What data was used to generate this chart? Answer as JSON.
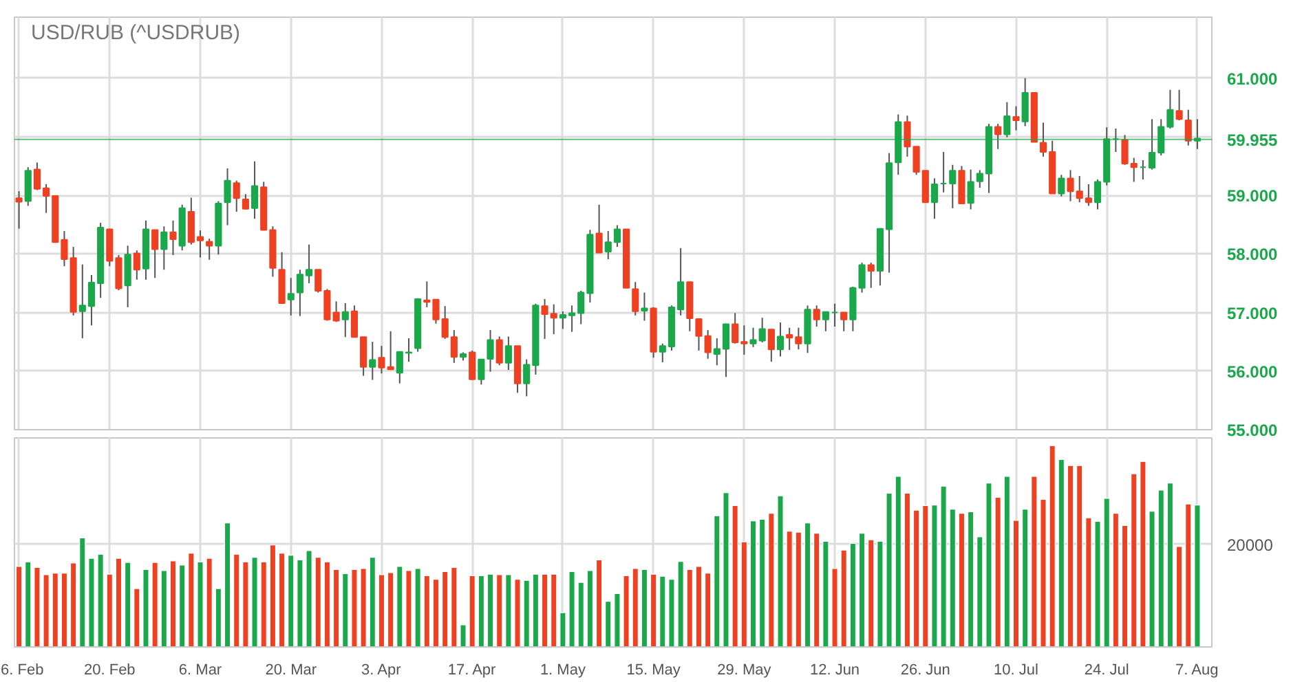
{
  "chart_data": [
    {
      "type": "candlestick",
      "title": "USD/RUB (^USDRUB)",
      "categories": [
        null,
        null,
        null,
        null,
        null,
        null,
        null,
        null,
        null,
        null,
        null,
        null,
        null,
        null,
        null,
        null,
        null,
        null,
        null,
        null,
        null,
        null,
        null,
        null,
        null,
        null,
        null,
        null,
        null,
        null,
        null,
        null,
        null,
        null,
        null,
        null,
        null,
        null,
        null,
        null,
        null,
        null,
        null,
        null,
        null,
        null,
        null,
        null,
        null,
        null,
        null,
        null,
        null,
        null,
        null,
        null,
        null,
        null,
        null,
        null,
        null,
        null,
        null,
        null,
        null,
        null,
        null,
        null,
        null,
        null,
        null,
        null,
        null,
        null,
        null,
        null,
        null,
        null,
        null,
        null,
        null,
        null,
        null,
        null,
        null,
        null,
        null,
        null,
        null,
        null,
        null,
        null,
        null,
        null,
        null,
        null,
        null,
        null,
        null,
        null,
        null,
        null,
        null,
        null,
        null,
        null,
        null,
        null,
        null,
        null,
        null,
        null,
        null,
        null,
        null,
        null,
        null,
        null,
        null,
        null,
        null,
        null,
        null,
        null,
        null,
        null,
        null,
        null,
        null,
        null,
        null
      ],
      "ohlc": [
        [
          58.95,
          59.07,
          58.43,
          58.89
        ],
        [
          58.9,
          59.48,
          58.82,
          59.42
        ],
        [
          59.44,
          59.56,
          59.09,
          59.11
        ],
        [
          59.12,
          59.19,
          58.7,
          58.99
        ],
        [
          58.99,
          59.0,
          58.19,
          58.2
        ],
        [
          58.24,
          58.39,
          57.79,
          57.91
        ],
        [
          57.93,
          58.12,
          56.95,
          57.01
        ],
        [
          57.02,
          57.82,
          56.56,
          57.12
        ],
        [
          57.11,
          57.64,
          56.78,
          57.51
        ],
        [
          57.5,
          58.53,
          57.25,
          58.45
        ],
        [
          58.42,
          58.43,
          57.79,
          57.88
        ],
        [
          57.93,
          57.98,
          57.38,
          57.41
        ],
        [
          57.46,
          58.14,
          57.09,
          57.99
        ],
        [
          58.01,
          58.06,
          57.56,
          57.73
        ],
        [
          57.75,
          58.57,
          57.56,
          58.42
        ],
        [
          58.41,
          58.41,
          57.59,
          58.08
        ],
        [
          58.08,
          58.47,
          57.73,
          58.37
        ],
        [
          58.37,
          58.57,
          57.98,
          58.25
        ],
        [
          58.14,
          58.84,
          58.06,
          58.78
        ],
        [
          58.72,
          58.96,
          58.16,
          58.2
        ],
        [
          58.29,
          58.4,
          57.94,
          58.23
        ],
        [
          58.21,
          58.26,
          57.9,
          58.14
        ],
        [
          58.14,
          58.9,
          57.99,
          58.86
        ],
        [
          58.88,
          59.46,
          58.49,
          59.25
        ],
        [
          59.21,
          59.25,
          58.72,
          58.95
        ],
        [
          58.93,
          59.02,
          58.76,
          58.77
        ],
        [
          58.78,
          59.58,
          58.6,
          59.16
        ],
        [
          59.14,
          59.23,
          58.41,
          58.41
        ],
        [
          58.41,
          58.47,
          57.61,
          57.76
        ],
        [
          57.73,
          58.03,
          57.15,
          57.16
        ],
        [
          57.22,
          57.59,
          56.95,
          57.32
        ],
        [
          57.34,
          57.73,
          56.94,
          57.65
        ],
        [
          57.63,
          58.16,
          57.5,
          57.73
        ],
        [
          57.73,
          57.73,
          57.34,
          57.37
        ],
        [
          57.37,
          57.4,
          56.86,
          56.88
        ],
        [
          57.0,
          57.19,
          56.84,
          56.86
        ],
        [
          56.88,
          57.16,
          56.58,
          57.01
        ],
        [
          57.02,
          57.12,
          56.58,
          56.58
        ],
        [
          56.58,
          56.58,
          55.92,
          56.07
        ],
        [
          56.07,
          56.5,
          55.85,
          56.19
        ],
        [
          56.23,
          56.43,
          55.96,
          56.06
        ],
        [
          56.07,
          56.68,
          56.02,
          56.03
        ],
        [
          55.97,
          56.33,
          55.79,
          56.33
        ],
        [
          56.31,
          56.56,
          56.16,
          56.32
        ],
        [
          56.39,
          57.23,
          56.33,
          57.23
        ],
        [
          57.21,
          57.53,
          57.09,
          57.18
        ],
        [
          57.22,
          57.22,
          56.81,
          56.88
        ],
        [
          56.89,
          57.11,
          56.55,
          56.58
        ],
        [
          56.58,
          56.7,
          56.14,
          56.24
        ],
        [
          56.24,
          56.32,
          56.18,
          56.29
        ],
        [
          56.32,
          56.35,
          55.85,
          55.86
        ],
        [
          55.86,
          56.2,
          55.77,
          56.2
        ],
        [
          56.21,
          56.7,
          55.99,
          56.53
        ],
        [
          56.53,
          56.59,
          56.1,
          56.14
        ],
        [
          56.14,
          56.59,
          56.02,
          56.43
        ],
        [
          56.43,
          56.43,
          55.63,
          55.79
        ],
        [
          55.79,
          56.2,
          55.57,
          56.11
        ],
        [
          56.1,
          57.15,
          55.94,
          57.12
        ],
        [
          57.11,
          57.23,
          56.55,
          56.97
        ],
        [
          56.98,
          57.14,
          56.63,
          56.91
        ],
        [
          56.91,
          57.02,
          56.72,
          56.96
        ],
        [
          56.95,
          57.12,
          56.67,
          56.99
        ],
        [
          56.99,
          57.37,
          56.8,
          57.34
        ],
        [
          57.33,
          58.41,
          57.17,
          58.33
        ],
        [
          58.35,
          58.84,
          58.02,
          58.02
        ],
        [
          58.04,
          58.39,
          57.91,
          58.2
        ],
        [
          58.2,
          58.49,
          58.12,
          58.42
        ],
        [
          58.42,
          58.42,
          57.42,
          57.42
        ],
        [
          57.4,
          57.52,
          56.95,
          57.02
        ],
        [
          57.03,
          57.34,
          56.86,
          57.07
        ],
        [
          57.07,
          57.09,
          56.23,
          56.33
        ],
        [
          56.33,
          56.47,
          56.15,
          56.43
        ],
        [
          56.42,
          57.12,
          56.35,
          57.09
        ],
        [
          57.05,
          58.1,
          56.95,
          57.52
        ],
        [
          57.52,
          57.52,
          56.68,
          56.9
        ],
        [
          56.89,
          56.89,
          56.35,
          56.6
        ],
        [
          56.6,
          56.7,
          56.21,
          56.32
        ],
        [
          56.29,
          56.56,
          56.1,
          56.38
        ],
        [
          56.38,
          56.81,
          55.9,
          56.8
        ],
        [
          56.8,
          56.99,
          56.47,
          56.49
        ],
        [
          56.5,
          56.78,
          56.28,
          56.47
        ],
        [
          56.47,
          56.74,
          56.41,
          56.53
        ],
        [
          56.52,
          56.91,
          56.49,
          56.72
        ],
        [
          56.71,
          56.71,
          56.16,
          56.37
        ],
        [
          56.37,
          56.83,
          56.25,
          56.59
        ],
        [
          56.62,
          56.74,
          56.36,
          56.57
        ],
        [
          56.58,
          56.74,
          56.37,
          56.47
        ],
        [
          56.47,
          57.12,
          56.31,
          57.05
        ],
        [
          57.05,
          57.12,
          56.76,
          56.88
        ],
        [
          56.88,
          57.01,
          56.68,
          57.01
        ],
        [
          57.0,
          57.15,
          56.76,
          57.0
        ],
        [
          57.0,
          57.0,
          56.68,
          56.88
        ],
        [
          56.88,
          57.44,
          56.68,
          57.42
        ],
        [
          57.42,
          57.85,
          57.34,
          57.81
        ],
        [
          57.81,
          57.85,
          57.42,
          57.71
        ],
        [
          57.71,
          58.43,
          57.46,
          58.43
        ],
        [
          58.42,
          59.72,
          57.68,
          59.55
        ],
        [
          59.56,
          60.38,
          59.35,
          60.25
        ],
        [
          60.25,
          60.36,
          59.66,
          59.83
        ],
        [
          59.83,
          59.83,
          59.35,
          59.4
        ],
        [
          59.42,
          59.42,
          58.88,
          58.88
        ],
        [
          58.88,
          59.29,
          58.6,
          59.19
        ],
        [
          59.2,
          59.74,
          59.05,
          59.2
        ],
        [
          59.2,
          59.52,
          58.78,
          59.42
        ],
        [
          59.42,
          59.5,
          58.86,
          58.86
        ],
        [
          58.87,
          59.44,
          58.76,
          59.23
        ],
        [
          59.24,
          59.43,
          59.13,
          59.37
        ],
        [
          59.37,
          60.22,
          59.04,
          60.17
        ],
        [
          60.17,
          60.22,
          59.79,
          60.04
        ],
        [
          60.04,
          60.59,
          59.99,
          60.35
        ],
        [
          60.34,
          60.52,
          60.11,
          60.28
        ],
        [
          60.26,
          61.0,
          60.18,
          60.75
        ],
        [
          60.75,
          60.75,
          59.91,
          59.91
        ],
        [
          59.9,
          60.24,
          59.66,
          59.74
        ],
        [
          59.74,
          59.93,
          59.03,
          59.03
        ],
        [
          59.03,
          59.35,
          58.98,
          59.29
        ],
        [
          59.29,
          59.43,
          58.9,
          59.07
        ],
        [
          59.07,
          59.33,
          58.88,
          58.95
        ],
        [
          58.95,
          59.19,
          58.82,
          58.88
        ],
        [
          58.88,
          59.27,
          58.76,
          59.23
        ],
        [
          59.23,
          60.16,
          59.17,
          59.96
        ],
        [
          59.96,
          60.14,
          59.74,
          59.96
        ],
        [
          59.95,
          60.03,
          59.52,
          59.54
        ],
        [
          59.54,
          59.64,
          59.23,
          59.48
        ],
        [
          59.48,
          59.6,
          59.27,
          59.48
        ],
        [
          59.47,
          60.3,
          59.44,
          59.73
        ],
        [
          59.73,
          60.3,
          59.68,
          60.17
        ],
        [
          60.17,
          60.8,
          60.14,
          60.46
        ],
        [
          60.44,
          60.8,
          60.28,
          60.3
        ],
        [
          60.28,
          60.46,
          59.85,
          59.93
        ],
        [
          59.93,
          60.3,
          59.79,
          59.97
        ]
      ],
      "colors": [
        "#ee4122",
        "#1aa84b",
        "#ee4122",
        "#ee4122",
        "#ee4122",
        "#ee4122",
        "#ee4122",
        "#1aa84b",
        "#1aa84b",
        "#1aa84b",
        "#ee4122",
        "#ee4122",
        "#1aa84b",
        "#ee4122",
        "#1aa84b",
        "#ee4122",
        "#1aa84b",
        "#ee4122",
        "#1aa84b",
        "#ee4122",
        "#ee4122",
        "#ee4122",
        "#1aa84b",
        "#1aa84b",
        "#ee4122",
        "#ee4122",
        "#1aa84b",
        "#ee4122",
        "#ee4122",
        "#ee4122",
        "#1aa84b",
        "#1aa84b",
        "#1aa84b",
        "#ee4122",
        "#ee4122",
        "#ee4122",
        "#1aa84b",
        "#ee4122",
        "#ee4122",
        "#1aa84b",
        "#ee4122",
        "#ee4122",
        "#1aa84b",
        "#1aa84b",
        "#1aa84b",
        "#ee4122",
        "#ee4122",
        "#ee4122",
        "#ee4122",
        "#1aa84b",
        "#ee4122",
        "#1aa84b",
        "#1aa84b",
        "#ee4122",
        "#1aa84b",
        "#ee4122",
        "#1aa84b",
        "#1aa84b",
        "#ee4122",
        "#ee4122",
        "#1aa84b",
        "#1aa84b",
        "#1aa84b",
        "#1aa84b",
        "#ee4122",
        "#1aa84b",
        "#1aa84b",
        "#ee4122",
        "#ee4122",
        "#1aa84b",
        "#ee4122",
        "#1aa84b",
        "#1aa84b",
        "#1aa84b",
        "#ee4122",
        "#ee4122",
        "#ee4122",
        "#1aa84b",
        "#1aa84b",
        "#ee4122",
        "#ee4122",
        "#1aa84b",
        "#1aa84b",
        "#ee4122",
        "#1aa84b",
        "#ee4122",
        "#ee4122",
        "#1aa84b",
        "#ee4122",
        "#1aa84b",
        "#1aa84b",
        "#ee4122",
        "#1aa84b",
        "#1aa84b",
        "#ee4122",
        "#1aa84b",
        "#1aa84b",
        "#1aa84b",
        "#ee4122",
        "#ee4122",
        "#ee4122",
        "#1aa84b",
        "#1aa84b",
        "#1aa84b",
        "#ee4122",
        "#1aa84b",
        "#1aa84b",
        "#1aa84b",
        "#ee4122",
        "#1aa84b",
        "#ee4122",
        "#1aa84b",
        "#ee4122",
        "#ee4122",
        "#ee4122",
        "#1aa84b",
        "#ee4122",
        "#ee4122",
        "#ee4122",
        "#1aa84b",
        "#1aa84b",
        "#1aa84b",
        "#ee4122",
        "#ee4122",
        "#1aa84b",
        "#1aa84b",
        "#1aa84b",
        "#1aa84b",
        "#ee4122",
        "#ee4122",
        "#1aa84b"
      ],
      "ylim": [
        55,
        62.04
      ],
      "yticks": [
        {
          "value": 55,
          "label": "55.000"
        },
        {
          "value": 56,
          "label": "56.000"
        },
        {
          "value": 57,
          "label": "57.000"
        },
        {
          "value": 58,
          "label": "58.000"
        },
        {
          "value": 59,
          "label": "59.000"
        },
        {
          "value": 60,
          "label": null
        },
        {
          "value": 61,
          "label": "61.000"
        }
      ],
      "ref_lines": [
        {
          "axis": "y",
          "value": 59.955,
          "label": "59.955",
          "color": "#1aa84b"
        }
      ],
      "grid": true,
      "tick_labels": "y"
    },
    {
      "type": "bar",
      "categories": [
        "6. Feb",
        null,
        null,
        null,
        null,
        null,
        null,
        null,
        null,
        null,
        "20. Feb",
        null,
        null,
        null,
        null,
        null,
        null,
        null,
        null,
        null,
        "6. Mar",
        null,
        null,
        null,
        null,
        null,
        null,
        null,
        null,
        null,
        "20. Mar",
        null,
        null,
        null,
        null,
        null,
        null,
        null,
        null,
        null,
        "3. Apr",
        null,
        null,
        null,
        null,
        null,
        null,
        null,
        null,
        null,
        "17. Apr",
        null,
        null,
        null,
        null,
        null,
        null,
        null,
        null,
        null,
        "1. May",
        null,
        null,
        null,
        null,
        null,
        null,
        null,
        null,
        null,
        "15. May",
        null,
        null,
        null,
        null,
        null,
        null,
        null,
        null,
        null,
        "29. May",
        null,
        null,
        null,
        null,
        null,
        null,
        null,
        null,
        null,
        "12. Jun",
        null,
        null,
        null,
        null,
        null,
        null,
        null,
        null,
        null,
        "26. Jun",
        null,
        null,
        null,
        null,
        null,
        null,
        null,
        null,
        null,
        "10. Jul",
        null,
        null,
        null,
        null,
        null,
        null,
        null,
        null,
        null,
        "24. Jul",
        null,
        null,
        null,
        null,
        null,
        null,
        null,
        null,
        null,
        "7. Aug"
      ],
      "values": [
        15700,
        16600,
        15500,
        14100,
        14400,
        14400,
        16400,
        21300,
        17300,
        18100,
        14200,
        17300,
        16500,
        11400,
        15100,
        16500,
        14900,
        16800,
        16000,
        18300,
        16600,
        17300,
        11400,
        24200,
        18100,
        16600,
        17500,
        16600,
        19900,
        18300,
        17900,
        17000,
        18800,
        17500,
        16600,
        15100,
        14300,
        15100,
        15300,
        17500,
        14100,
        14500,
        15700,
        14900,
        15300,
        13900,
        13200,
        14700,
        15500,
        4300,
        13900,
        13900,
        14200,
        14100,
        14100,
        13200,
        13000,
        14200,
        14200,
        14200,
        6700,
        14700,
        12600,
        14900,
        17000,
        8900,
        10400,
        13900,
        15300,
        15100,
        14200,
        13800,
        13200,
        16700,
        15100,
        15700,
        14400,
        25600,
        30100,
        27600,
        20500,
        24600,
        24900,
        26100,
        29500,
        22600,
        22400,
        24200,
        22200,
        20600,
        15300,
        18900,
        20200,
        22200,
        20900,
        20600,
        30000,
        33300,
        30000,
        26700,
        27600,
        27700,
        31400,
        26900,
        26100,
        26400,
        21500,
        32000,
        29200,
        33300,
        24700,
        26900,
        33300,
        28800,
        39300,
        36600,
        35400,
        35400,
        25200,
        24500,
        29000,
        26100,
        23700,
        33800,
        36200,
        26500,
        30600,
        32000,
        19600,
        27900,
        27700
      ],
      "colors": [
        "#ee4122",
        "#1aa84b",
        "#ee4122",
        "#ee4122",
        "#ee4122",
        "#ee4122",
        "#ee4122",
        "#1aa84b",
        "#1aa84b",
        "#1aa84b",
        "#ee4122",
        "#ee4122",
        "#1aa84b",
        "#ee4122",
        "#1aa84b",
        "#ee4122",
        "#1aa84b",
        "#ee4122",
        "#1aa84b",
        "#ee4122",
        "#1aa84b",
        "#ee4122",
        "#1aa84b",
        "#1aa84b",
        "#ee4122",
        "#ee4122",
        "#1aa84b",
        "#ee4122",
        "#ee4122",
        "#ee4122",
        "#1aa84b",
        "#1aa84b",
        "#1aa84b",
        "#ee4122",
        "#ee4122",
        "#ee4122",
        "#1aa84b",
        "#ee4122",
        "#ee4122",
        "#1aa84b",
        "#ee4122",
        "#ee4122",
        "#1aa84b",
        "#ee4122",
        "#1aa84b",
        "#ee4122",
        "#ee4122",
        "#ee4122",
        "#ee4122",
        "#1aa84b",
        "#ee4122",
        "#1aa84b",
        "#1aa84b",
        "#ee4122",
        "#1aa84b",
        "#ee4122",
        "#1aa84b",
        "#1aa84b",
        "#ee4122",
        "#ee4122",
        "#1aa84b",
        "#1aa84b",
        "#1aa84b",
        "#1aa84b",
        "#ee4122",
        "#1aa84b",
        "#1aa84b",
        "#ee4122",
        "#ee4122",
        "#1aa84b",
        "#ee4122",
        "#1aa84b",
        "#1aa84b",
        "#1aa84b",
        "#ee4122",
        "#ee4122",
        "#ee4122",
        "#1aa84b",
        "#1aa84b",
        "#ee4122",
        "#ee4122",
        "#1aa84b",
        "#1aa84b",
        "#ee4122",
        "#1aa84b",
        "#ee4122",
        "#ee4122",
        "#1aa84b",
        "#ee4122",
        "#1aa84b",
        "#ee4122",
        "#ee4122",
        "#1aa84b",
        "#1aa84b",
        "#ee4122",
        "#1aa84b",
        "#1aa84b",
        "#1aa84b",
        "#ee4122",
        "#ee4122",
        "#ee4122",
        "#1aa84b",
        "#1aa84b",
        "#1aa84b",
        "#ee4122",
        "#1aa84b",
        "#1aa84b",
        "#1aa84b",
        "#ee4122",
        "#1aa84b",
        "#ee4122",
        "#1aa84b",
        "#ee4122",
        "#ee4122",
        "#ee4122",
        "#1aa84b",
        "#ee4122",
        "#ee4122",
        "#ee4122",
        "#1aa84b",
        "#1aa84b",
        "#ee4122",
        "#ee4122",
        "#ee4122",
        "#ee4122",
        "#1aa84b",
        "#1aa84b",
        "#1aa84b",
        "#ee4122",
        "#ee4122",
        "#1aa84b"
      ],
      "ylim": [
        0,
        40800
      ],
      "yticks": [
        {
          "value": 0,
          "label": null
        },
        {
          "value": 20000,
          "label": "20000"
        }
      ],
      "grid": true
    }
  ]
}
